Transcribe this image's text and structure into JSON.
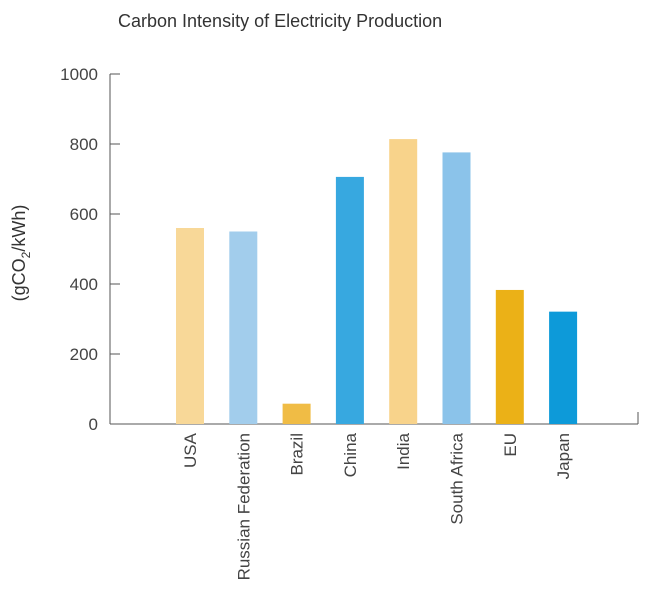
{
  "chart_data": {
    "type": "bar",
    "title": "Carbon Intensity of Electricity Production",
    "ylabel_prefix": "(gCO",
    "ylabel_sub": "2",
    "ylabel_suffix": "/kWh)",
    "xlabel": "",
    "ylim": [
      0,
      1000
    ],
    "yticks": [
      0,
      200,
      400,
      600,
      800,
      1000
    ],
    "grid": false,
    "categories": [
      "USA",
      "Russian Federation",
      "Brazil",
      "China",
      "India",
      "South Africa",
      "EU",
      "Japan"
    ],
    "values": [
      560,
      550,
      58,
      706,
      814,
      776,
      383,
      321
    ],
    "colors": [
      "#f8d898",
      "#a2cdec",
      "#f0bc45",
      "#37a8e0",
      "#f8d38b",
      "#8bc3ea",
      "#ebb117",
      "#0d9ad9"
    ]
  }
}
